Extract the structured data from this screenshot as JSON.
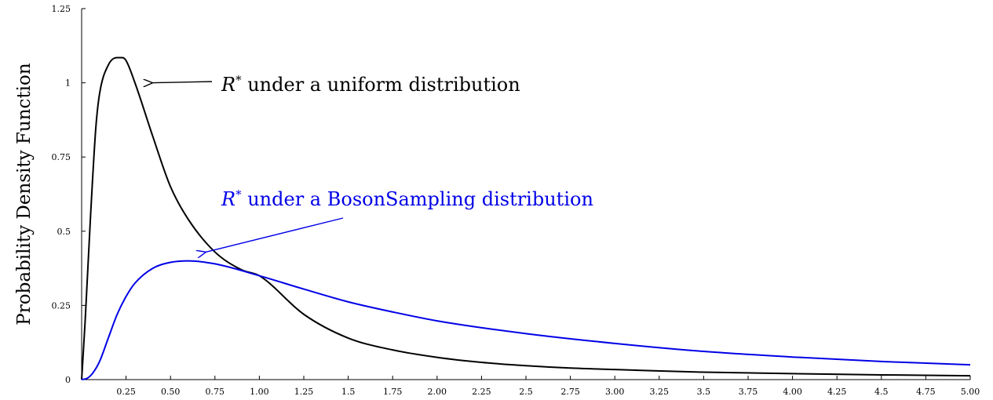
{
  "chart_data": {
    "type": "line",
    "title": "",
    "xlabel": "",
    "ylabel": "Probability Density Function",
    "xlim": [
      0,
      5
    ],
    "ylim": [
      0,
      1.25
    ],
    "x_ticks": [
      "0.25",
      "0.50",
      "0.75",
      "1.00",
      "1.25",
      "1.5",
      "1.75",
      "2.00",
      "2.25",
      "2.5",
      "2.75",
      "3.00",
      "3.25",
      "3.5",
      "3.75",
      "4.00",
      "4.25",
      "4.5",
      "4.75",
      "5.00"
    ],
    "y_ticks": [
      "0",
      "0.25",
      "0.5",
      "0.75",
      "1",
      "1.25"
    ],
    "grid": false,
    "legend": "none",
    "series": [
      {
        "name": "R* under a uniform distribution",
        "color": "#000000",
        "x": [
          0,
          0.02,
          0.05,
          0.08,
          0.1,
          0.15,
          0.2,
          0.23,
          0.25,
          0.3,
          0.4,
          0.5,
          0.6,
          0.75,
          0.9,
          1.0,
          1.25,
          1.5,
          1.75,
          2.0,
          2.25,
          2.5,
          2.75,
          3.0,
          3.5,
          4.0,
          4.5,
          5.0
        ],
        "y": [
          0,
          0.2,
          0.55,
          0.85,
          0.96,
          1.06,
          1.085,
          1.085,
          1.075,
          1.0,
          0.82,
          0.65,
          0.54,
          0.43,
          0.37,
          0.35,
          0.22,
          0.14,
          0.1,
          0.075,
          0.058,
          0.047,
          0.039,
          0.034,
          0.025,
          0.02,
          0.016,
          0.013
        ]
      },
      {
        "name": "R* under a BosonSampling distribution",
        "color": "#0000e6",
        "x": [
          0,
          0.03,
          0.06,
          0.1,
          0.15,
          0.2,
          0.25,
          0.3,
          0.4,
          0.5,
          0.6,
          0.75,
          1.0,
          1.25,
          1.5,
          1.75,
          2.0,
          2.5,
          3.0,
          3.5,
          4.0,
          4.5,
          5.0
        ],
        "y": [
          0,
          0.004,
          0.02,
          0.06,
          0.14,
          0.22,
          0.28,
          0.325,
          0.375,
          0.395,
          0.4,
          0.39,
          0.35,
          0.305,
          0.262,
          0.228,
          0.198,
          0.155,
          0.122,
          0.095,
          0.076,
          0.061,
          0.05
        ]
      }
    ],
    "annotations": [
      {
        "symbol": "R",
        "sup": "*",
        "text": " under a uniform distribution",
        "color": "#000000",
        "arrow_to": [
          0.4,
          1.0
        ]
      },
      {
        "symbol": "R",
        "sup": "*",
        "text": " under a BosonSampling distribution",
        "color": "#0000e6",
        "arrow_to": [
          0.7,
          0.43
        ]
      }
    ]
  }
}
